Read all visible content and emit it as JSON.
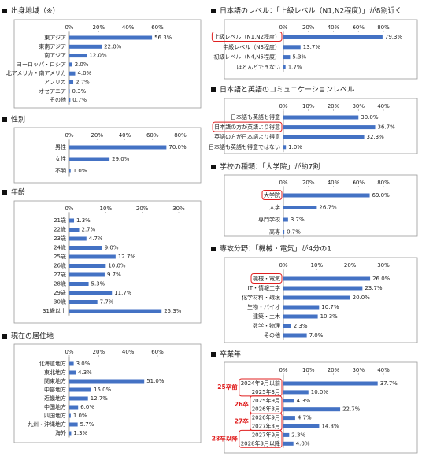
{
  "chart_data": [
    {
      "type": "bar",
      "title": "出身地域（※）",
      "color": "#4472c4",
      "categories": [
        "東アジア",
        "東南アジア",
        "南アジア",
        "ヨーロッパ・ロシア",
        "北アメリカ・南アメリカ",
        "アフリカ",
        "オセアニア",
        "その他"
      ],
      "values": [
        56.3,
        22.0,
        12.0,
        2.0,
        4.0,
        2.7,
        0.3,
        0.7
      ],
      "value_labels": [
        "56.3%",
        "22.0%",
        "12.0%",
        "2.0%",
        "4.0%",
        "2.7%",
        "0.3%",
        "0.7%"
      ],
      "xlim": [
        0,
        60
      ],
      "xticks": [
        {
          "value": 0,
          "label": "0%"
        },
        {
          "value": 20,
          "label": "20%"
        },
        {
          "value": 40,
          "label": "40%"
        },
        {
          "value": 60,
          "label": "60%"
        }
      ]
    },
    {
      "type": "bar",
      "title": "性別",
      "color": "#4472c4",
      "categories": [
        "男性",
        "女性",
        "不明"
      ],
      "values": [
        70.0,
        29.0,
        1.0
      ],
      "value_labels": [
        "70.0%",
        "29.0%",
        "1.0%"
      ],
      "xlim": [
        0,
        80
      ],
      "xticks": [
        {
          "value": 0,
          "label": "0%"
        },
        {
          "value": 20,
          "label": "20%"
        },
        {
          "value": 40,
          "label": "40%"
        },
        {
          "value": 60,
          "label": "60%"
        },
        {
          "value": 80,
          "label": "80%"
        }
      ]
    },
    {
      "type": "bar",
      "title": "年齢",
      "color": "#4472c4",
      "categories": [
        "21歳",
        "22歳",
        "23歳",
        "24歳",
        "25歳",
        "26歳",
        "27歳",
        "28歳",
        "29歳",
        "30歳",
        "31歳以上"
      ],
      "values": [
        1.3,
        2.7,
        4.7,
        9.0,
        12.7,
        10.0,
        9.7,
        5.3,
        11.7,
        7.7,
        25.3
      ],
      "value_labels": [
        "1.3%",
        "2.7%",
        "4.7%",
        "9.0%",
        "12.7%",
        "10.0%",
        "9.7%",
        "5.3%",
        "11.7%",
        "7.7%",
        "25.3%"
      ],
      "xlim": [
        0,
        30
      ],
      "xticks": [
        {
          "value": 0,
          "label": "0%"
        },
        {
          "value": 10,
          "label": "10%"
        },
        {
          "value": 20,
          "label": "20%"
        },
        {
          "value": 30,
          "label": "30%"
        }
      ]
    },
    {
      "type": "bar",
      "title": "現在の居住地",
      "color": "#4472c4",
      "categories": [
        "北海道地方",
        "東北地方",
        "関東地方",
        "中部地方",
        "近畿地方",
        "中国地方",
        "四国地方",
        "九州・沖縄地方",
        "海外"
      ],
      "values": [
        3.0,
        4.3,
        51.0,
        15.0,
        12.7,
        6.0,
        1.0,
        5.7,
        1.3
      ],
      "value_labels": [
        "3.0%",
        "4.3%",
        "51.0%",
        "15.0%",
        "12.7%",
        "6.0%",
        "1.0%",
        "5.7%",
        "1.3%"
      ],
      "xlim": [
        0,
        60
      ],
      "xticks": [
        {
          "value": 0,
          "label": "0%"
        },
        {
          "value": 20,
          "label": "20%"
        },
        {
          "value": 40,
          "label": "40%"
        },
        {
          "value": 60,
          "label": "60%"
        }
      ]
    },
    {
      "type": "bar",
      "title": "日本語のレベル：「上級レベル（N1,N2程度）」が8割近く",
      "color": "#4472c4",
      "highlight": 0,
      "categories": [
        "上級レベル（N1,N2程度）",
        "中級レベル（N3程度）",
        "初級レベル（N4,N5程度）",
        "ほとんどできない"
      ],
      "values": [
        79.3,
        13.7,
        5.3,
        1.7
      ],
      "value_labels": [
        "79.3%",
        "13.7%",
        "5.3%",
        "1.7%"
      ],
      "xlim": [
        0,
        80
      ],
      "xticks": [
        {
          "value": 0,
          "label": "0%"
        },
        {
          "value": 20,
          "label": "20%"
        },
        {
          "value": 40,
          "label": "40%"
        },
        {
          "value": 60,
          "label": "60%"
        },
        {
          "value": 80,
          "label": "80%"
        }
      ]
    },
    {
      "type": "bar",
      "title": "日本語と英語のコミュニケーションレベル",
      "color": "#4472c4",
      "highlight": 1,
      "categories": [
        "日本語も英語も得意",
        "日本語の方が英語より得意",
        "英語の方が日本語より得意",
        "日本語も英語も得意ではない"
      ],
      "values": [
        30.0,
        36.7,
        32.3,
        1.0
      ],
      "value_labels": [
        "30.0%",
        "36.7%",
        "32.3%",
        "1.0%"
      ],
      "xlim": [
        0,
        40
      ],
      "xticks": [
        {
          "value": 0,
          "label": "0%"
        },
        {
          "value": 10,
          "label": "10%"
        },
        {
          "value": 20,
          "label": "20%"
        },
        {
          "value": 30,
          "label": "30%"
        },
        {
          "value": 40,
          "label": "40%"
        }
      ]
    },
    {
      "type": "bar",
      "title": "学校の種類：「大学院」が約7割",
      "color": "#4472c4",
      "highlight": 0,
      "categories": [
        "大学院",
        "大学",
        "専門学校",
        "高専"
      ],
      "values": [
        69.0,
        26.7,
        3.7,
        0.7
      ],
      "value_labels": [
        "69.0%",
        "26.7%",
        "3.7%",
        "0.7%"
      ],
      "xlim": [
        0,
        80
      ],
      "xticks": [
        {
          "value": 0,
          "label": "0%"
        },
        {
          "value": 20,
          "label": "20%"
        },
        {
          "value": 40,
          "label": "40%"
        },
        {
          "value": 60,
          "label": "60%"
        },
        {
          "value": 80,
          "label": "80%"
        }
      ]
    },
    {
      "type": "bar",
      "title": "専攻分野：「機械・電気」が4分の1",
      "color": "#4472c4",
      "highlight": 0,
      "categories": [
        "機械・電気",
        "IT・情報工学",
        "化学材料・環境",
        "生物・バイオ",
        "建築・土木",
        "数学・物理",
        "その他"
      ],
      "values": [
        26.0,
        23.7,
        20.0,
        10.7,
        10.3,
        2.3,
        7.0
      ],
      "value_labels": [
        "26.0%",
        "23.7%",
        "20.0%",
        "10.7%",
        "10.3%",
        "2.3%",
        "7.0%"
      ],
      "xlim": [
        0,
        30
      ],
      "xticks": [
        {
          "value": 0,
          "label": "0%"
        },
        {
          "value": 10,
          "label": "10%"
        },
        {
          "value": 20,
          "label": "20%"
        },
        {
          "value": 30,
          "label": "30%"
        }
      ]
    },
    {
      "type": "bar",
      "title": "卒業年",
      "color": "#4472c4",
      "categories": [
        "2024年9月以前",
        "2025年3月",
        "2025年9月",
        "2026年3月",
        "2026年9月",
        "2027年3月",
        "2027年9月",
        "2028年3月以降"
      ],
      "values": [
        37.7,
        10.0,
        4.3,
        22.7,
        4.7,
        14.3,
        2.3,
        4.0
      ],
      "value_labels": [
        "37.7%",
        "10.0%",
        "4.3%",
        "22.7%",
        "4.7%",
        "14.3%",
        "2.3%",
        "4.0%"
      ],
      "groups": [
        {
          "label": "25卒前",
          "members": [
            0,
            1
          ]
        },
        {
          "label": "26卒",
          "members": [
            2,
            3
          ]
        },
        {
          "label": "27卒",
          "members": [
            4,
            5
          ]
        },
        {
          "label": "28卒以降",
          "members": [
            6,
            7
          ]
        }
      ],
      "xlim": [
        0,
        40
      ],
      "xticks": [
        {
          "value": 0,
          "label": "0%"
        },
        {
          "value": 10,
          "label": "10%"
        },
        {
          "value": 20,
          "label": "20%"
        },
        {
          "value": 30,
          "label": "30%"
        },
        {
          "value": 40,
          "label": "40%"
        }
      ]
    }
  ]
}
